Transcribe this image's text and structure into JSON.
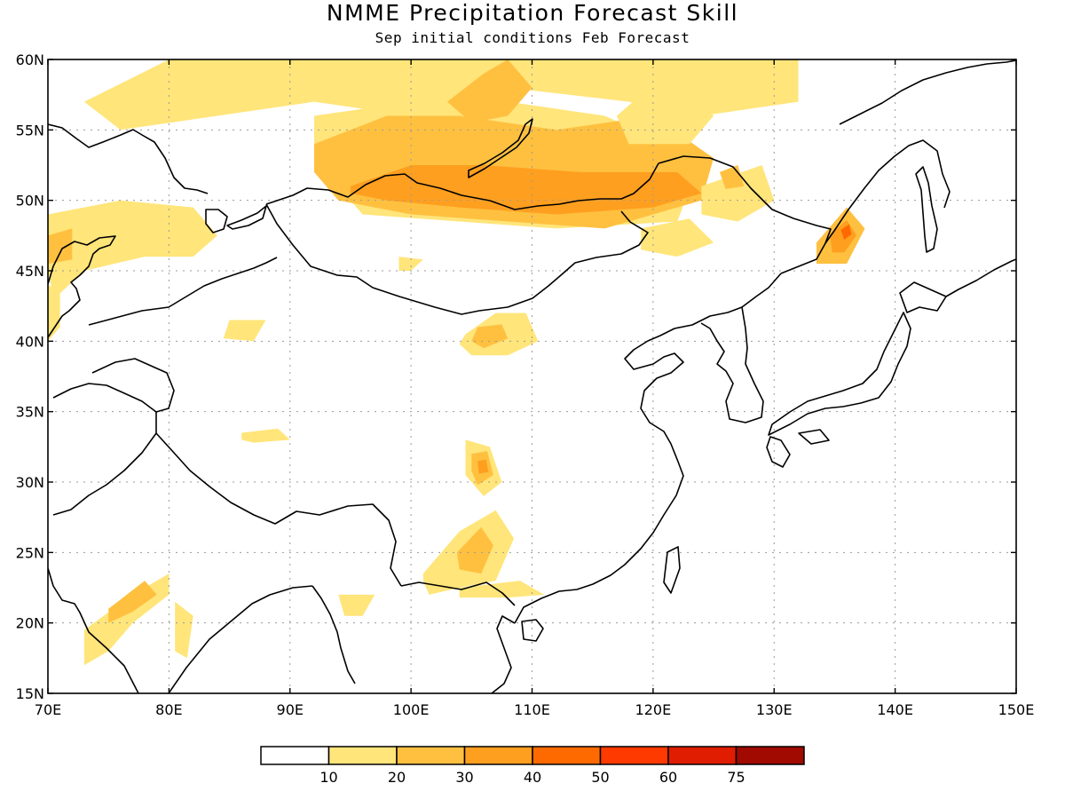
{
  "title": "NMME Precipitation Forecast Skill",
  "subtitle": "Sep initial conditions  Feb Forecast",
  "map": {
    "lon_range": [
      70,
      150
    ],
    "lat_range": [
      15,
      60
    ],
    "lon_ticks": [
      {
        "value": 70,
        "label": "70E"
      },
      {
        "value": 80,
        "label": "80E"
      },
      {
        "value": 90,
        "label": "90E"
      },
      {
        "value": 100,
        "label": "100E"
      },
      {
        "value": 110,
        "label": "110E"
      },
      {
        "value": 120,
        "label": "120E"
      },
      {
        "value": 130,
        "label": "130E"
      },
      {
        "value": 140,
        "label": "140E"
      },
      {
        "value": 150,
        "label": "150E"
      }
    ],
    "lat_ticks": [
      {
        "value": 15,
        "label": "15N"
      },
      {
        "value": 20,
        "label": "20N"
      },
      {
        "value": 25,
        "label": "25N"
      },
      {
        "value": 30,
        "label": "30N"
      },
      {
        "value": 35,
        "label": "35N"
      },
      {
        "value": 40,
        "label": "40N"
      },
      {
        "value": 45,
        "label": "45N"
      },
      {
        "value": 50,
        "label": "50N"
      },
      {
        "value": 55,
        "label": "55N"
      },
      {
        "value": 60,
        "label": "60N"
      }
    ],
    "grid": "dotted",
    "skill_regions": [
      {
        "level": 10,
        "lons": [
          73,
          80,
          88,
          96,
          102,
          108,
          116,
          124,
          132,
          132,
          124,
          118,
          108,
          100,
          92,
          84,
          76,
          73
        ],
        "lats": [
          57,
          60,
          60,
          60,
          60,
          60,
          60,
          60,
          60,
          57,
          56,
          57,
          58,
          56,
          57,
          56,
          55,
          57
        ]
      },
      {
        "level": 10,
        "lons": [
          92,
          100,
          108,
          116,
          124,
          122,
          112,
          104,
          96,
          92
        ],
        "lats": [
          56,
          57,
          57,
          56,
          53,
          48.5,
          48,
          48.5,
          49,
          53
        ]
      },
      {
        "level": 20,
        "lons": [
          92,
          98,
          104,
          112,
          120,
          125,
          124,
          116,
          108,
          100,
          94,
          92
        ],
        "lats": [
          54,
          56,
          56,
          55,
          56,
          53,
          50,
          48,
          48.5,
          49,
          50,
          52
        ]
      },
      {
        "level": 30,
        "lons": [
          95,
          100,
          106,
          114,
          122,
          124,
          120,
          112,
          104,
          98,
          95
        ],
        "lats": [
          51,
          52.5,
          52.5,
          52,
          52,
          50.5,
          49.5,
          49,
          49.5,
          50,
          50.5
        ]
      },
      {
        "level": 20,
        "lons": [
          103,
          106,
          108,
          110,
          108,
          105
        ],
        "lats": [
          57,
          59,
          60,
          58,
          56,
          55.5
        ]
      },
      {
        "level": 10,
        "lons": [
          117,
          121,
          125,
          123,
          118
        ],
        "lats": [
          56,
          59,
          56,
          54,
          54
        ]
      },
      {
        "level": 10,
        "lons": [
          124,
          129,
          130,
          127,
          124
        ],
        "lats": [
          51,
          52.5,
          50,
          48.5,
          49
        ]
      },
      {
        "level": 20,
        "lons": [
          125.5,
          127,
          127.5,
          126
        ],
        "lats": [
          52,
          52.5,
          51,
          50.8
        ]
      },
      {
        "level": 10,
        "lons": [
          119,
          123,
          125,
          122,
          119
        ],
        "lats": [
          48,
          48.7,
          47,
          46,
          46.5
        ]
      },
      {
        "level": 10,
        "lons": [
          70,
          76,
          82,
          84,
          82,
          78,
          73,
          70.5,
          70
        ],
        "lats": [
          49,
          50,
          49.5,
          47.5,
          46,
          46,
          45,
          43,
          45
        ]
      },
      {
        "level": 20,
        "lons": [
          70,
          72,
          72,
          70
        ],
        "lats": [
          47.5,
          48,
          45.8,
          45.5
        ]
      },
      {
        "level": 20,
        "lons": [
          133.5,
          136,
          137.5,
          136,
          133.5
        ],
        "lats": [
          47,
          49.5,
          48,
          45.5,
          45.5
        ]
      },
      {
        "level": 30,
        "lons": [
          134.6,
          136,
          136.8,
          135.8,
          134.8
        ],
        "lats": [
          47.6,
          48.6,
          47.5,
          46.3,
          46.3
        ]
      },
      {
        "level": 40,
        "lons": [
          135.5,
          136.2,
          136.4,
          135.8
        ],
        "lats": [
          47.9,
          48.3,
          47.6,
          47.2
        ]
      },
      {
        "level": 10,
        "lons": [
          104.5,
          107,
          109.5,
          110.5,
          108,
          105,
          104
        ],
        "lats": [
          40.5,
          42,
          42,
          40,
          39,
          39,
          39.8
        ]
      },
      {
        "level": 20,
        "lons": [
          105.5,
          107.5,
          108,
          106,
          105
        ],
        "lats": [
          41,
          41.2,
          40.2,
          39.5,
          40
        ]
      },
      {
        "level": 10,
        "lons": [
          85,
          88,
          87,
          84.5
        ],
        "lats": [
          41.5,
          41.5,
          40,
          40.2
        ]
      },
      {
        "level": 10,
        "lons": [
          99,
          101,
          100,
          99
        ],
        "lats": [
          46,
          45.8,
          45,
          45
        ]
      },
      {
        "level": 10,
        "lons": [
          86,
          89,
          90,
          87,
          86
        ],
        "lats": [
          33.5,
          33.8,
          33,
          32.8,
          33
        ]
      },
      {
        "level": 10,
        "lons": [
          104.5,
          106.5,
          107.5,
          106,
          104.5
        ],
        "lats": [
          33,
          32.5,
          30,
          29,
          30.5
        ]
      },
      {
        "level": 20,
        "lons": [
          105,
          106.3,
          106.8,
          105.5,
          105
        ],
        "lats": [
          32,
          32.2,
          30.5,
          29.8,
          30.8
        ]
      },
      {
        "level": 30,
        "lons": [
          105.5,
          106.2,
          106.4,
          105.6
        ],
        "lats": [
          31.5,
          31.6,
          30.7,
          30.6
        ]
      },
      {
        "level": 10,
        "lons": [
          101,
          104,
          107,
          108.5,
          107,
          104,
          101.5,
          101
        ],
        "lats": [
          23.5,
          26.5,
          28,
          26,
          23,
          22.5,
          22,
          23
        ]
      },
      {
        "level": 20,
        "lons": [
          103.8,
          105.8,
          106.8,
          105.8,
          104
        ],
        "lats": [
          25,
          26.8,
          25.5,
          23.5,
          23.8
        ]
      },
      {
        "level": 10,
        "lons": [
          104,
          109,
          111,
          108,
          104
        ],
        "lats": [
          22.5,
          23,
          22,
          21.8,
          21.8
        ]
      },
      {
        "level": 10,
        "lons": [
          73,
          77,
          80,
          80,
          77,
          75,
          73,
          73
        ],
        "lats": [
          19.5,
          22,
          23.5,
          22,
          20,
          18,
          17,
          19
        ]
      },
      {
        "level": 20,
        "lons": [
          75,
          78,
          79,
          77,
          75
        ],
        "lats": [
          21,
          23,
          22,
          20.8,
          20
        ]
      },
      {
        "level": 10,
        "lons": [
          80.5,
          82,
          81.5,
          80.5
        ],
        "lats": [
          21.5,
          20.5,
          17.5,
          18
        ]
      },
      {
        "level": 10,
        "lons": [
          94,
          97,
          96,
          94.5
        ],
        "lats": [
          22,
          22,
          20.5,
          20.5
        ]
      },
      {
        "level": 10,
        "lons": [
          70,
          71,
          71,
          70
        ],
        "lats": [
          44,
          43.5,
          41,
          40
        ]
      }
    ]
  },
  "colorbar": {
    "colors": [
      "#ffffff",
      "#ffe57a",
      "#ffc040",
      "#ff9f1f",
      "#ff6a00",
      "#ff3a00",
      "#e01d00",
      "#a00a00"
    ],
    "labels": [
      "10",
      "20",
      "30",
      "40",
      "50",
      "60",
      "75"
    ]
  }
}
